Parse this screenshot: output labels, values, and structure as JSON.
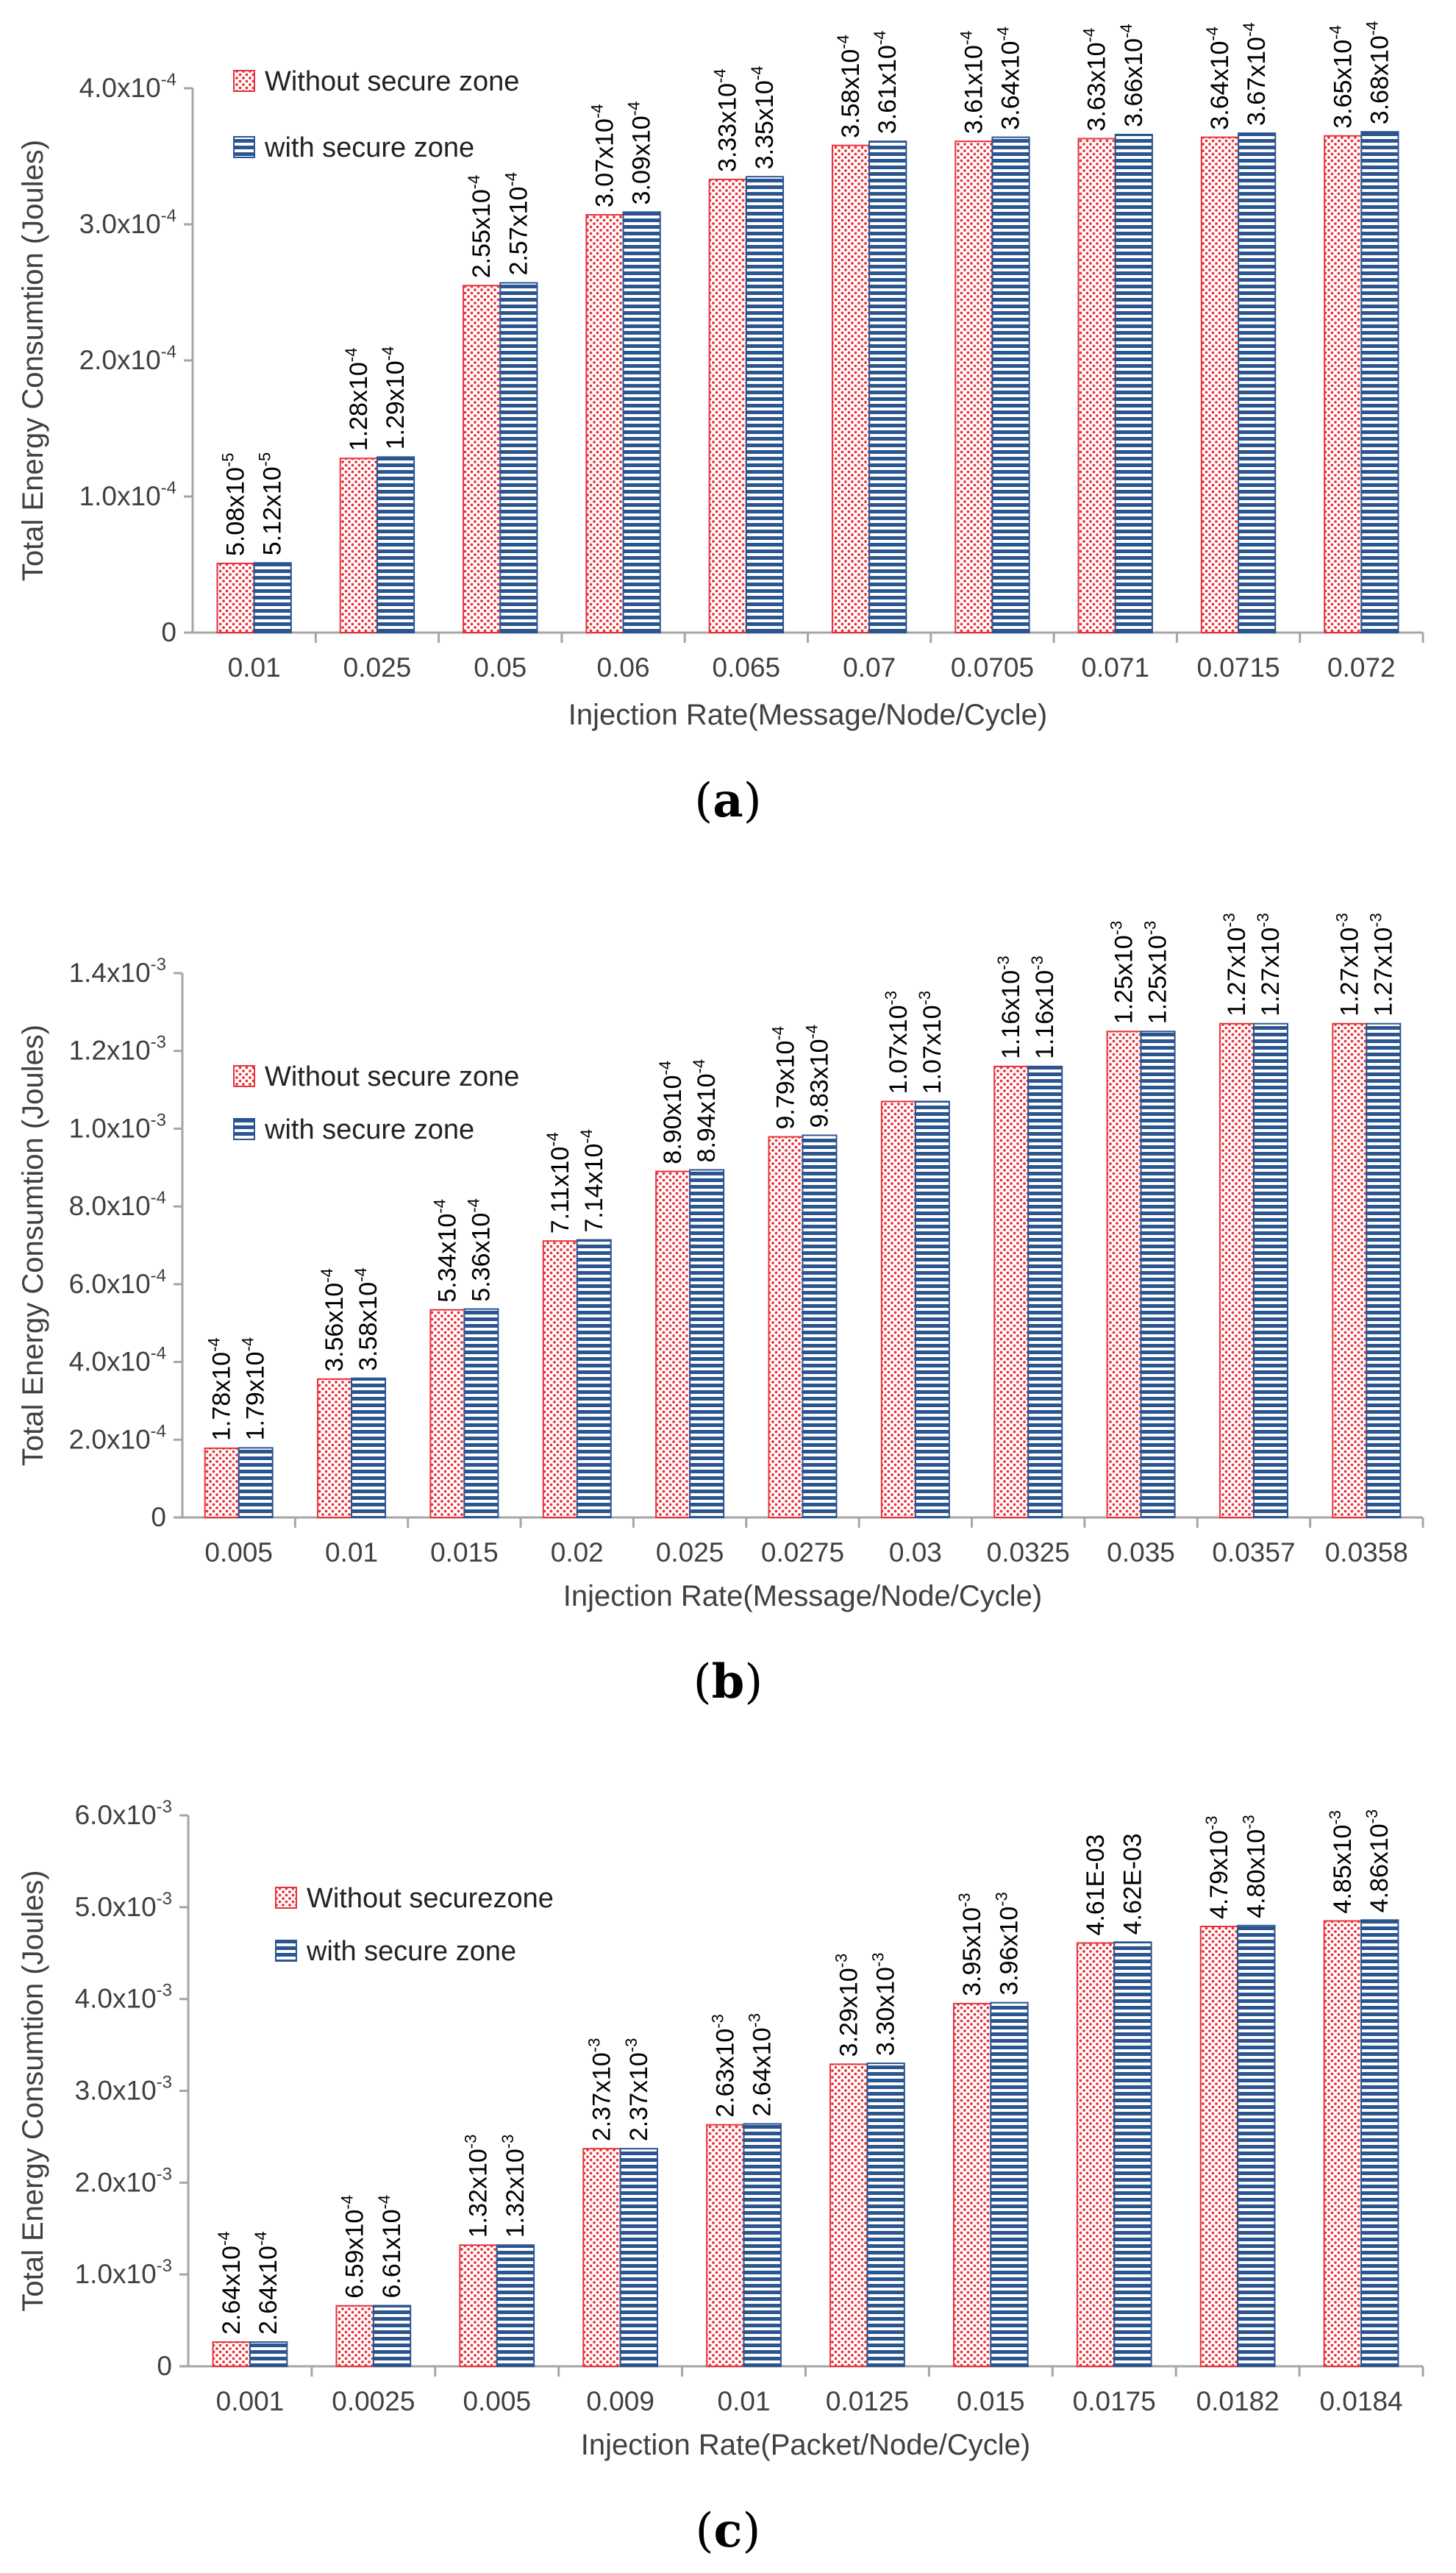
{
  "colors": {
    "series_without": "#e8333c",
    "series_with": "#2b5590",
    "axis": "#a6a6a6",
    "text": "#404040"
  },
  "chart_data": [
    {
      "type": "bar",
      "panel_label": "(a)",
      "xlabel": "Injection Rate(Message/Node/Cycle)",
      "ylabel": "Total Energy Consumtion (Joules)",
      "ylim": [
        0,
        0.0004
      ],
      "grid": false,
      "legend_position": "top-left",
      "yticks": [
        0,
        0.0001,
        0.0002,
        0.0003,
        0.0004
      ],
      "ytick_labels": [
        {
          "base": "0",
          "exp": ""
        },
        {
          "base": "1.0x10",
          "exp": "-4"
        },
        {
          "base": "2.0x10",
          "exp": "-4"
        },
        {
          "base": "3.0x10",
          "exp": "-4"
        },
        {
          "base": "4.0x10",
          "exp": "-4"
        }
      ],
      "categories": [
        "0.01",
        "0.025",
        "0.05",
        "0.06",
        "0.065",
        "0.07",
        "0.0705",
        "0.071",
        "0.0715",
        "0.072"
      ],
      "series": [
        {
          "name": "Without secure zone",
          "values": [
            5.08e-05,
            0.000128,
            0.000255,
            0.000307,
            0.000333,
            0.000358,
            0.000361,
            0.000363,
            0.000364,
            0.000365
          ],
          "labels": [
            {
              "base": "5.08x10",
              "exp": "-5"
            },
            {
              "base": "1.28x10",
              "exp": "-4"
            },
            {
              "base": "2.55x10",
              "exp": "-4"
            },
            {
              "base": "3.07x10",
              "exp": "-4"
            },
            {
              "base": "3.33x10",
              "exp": "-4"
            },
            {
              "base": "3.58x10",
              "exp": "-4"
            },
            {
              "base": "3.61x10",
              "exp": "-4"
            },
            {
              "base": "3.63x10",
              "exp": "-4"
            },
            {
              "base": "3.64x10",
              "exp": "-4"
            },
            {
              "base": "3.65x10",
              "exp": "-4"
            }
          ]
        },
        {
          "name": "with secure zone",
          "values": [
            5.12e-05,
            0.000129,
            0.000257,
            0.000309,
            0.000335,
            0.000361,
            0.000364,
            0.000366,
            0.000367,
            0.000368
          ],
          "labels": [
            {
              "base": "5.12x10",
              "exp": "-5"
            },
            {
              "base": "1.29x10",
              "exp": "-4"
            },
            {
              "base": "2.57x10",
              "exp": "-4"
            },
            {
              "base": "3.09x10",
              "exp": "-4"
            },
            {
              "base": "3.35x10",
              "exp": "-4"
            },
            {
              "base": "3.61x10",
              "exp": "-4"
            },
            {
              "base": "3.64x10",
              "exp": "-4"
            },
            {
              "base": "3.66x10",
              "exp": "-4"
            },
            {
              "base": "3.67x10",
              "exp": "-4"
            },
            {
              "base": "3.68x10",
              "exp": "-4"
            }
          ]
        }
      ]
    },
    {
      "type": "bar",
      "panel_label": "(b)",
      "xlabel": "Injection Rate(Message/Node/Cycle)",
      "ylabel": "Total Energy Consumtion (Joules)",
      "ylim": [
        0,
        0.0014
      ],
      "grid": false,
      "legend_position": "top-left",
      "yticks": [
        0,
        0.0002,
        0.0004,
        0.0006,
        0.0008,
        0.001,
        0.0012,
        0.0014
      ],
      "ytick_labels": [
        {
          "base": "0",
          "exp": ""
        },
        {
          "base": "2.0x10",
          "exp": "-4"
        },
        {
          "base": "4.0x10",
          "exp": "-4"
        },
        {
          "base": "6.0x10",
          "exp": "-4"
        },
        {
          "base": "8.0x10",
          "exp": "-4"
        },
        {
          "base": "1.0x10",
          "exp": "-3"
        },
        {
          "base": "1.2x10",
          "exp": "-3"
        },
        {
          "base": "1.4x10",
          "exp": "-3"
        }
      ],
      "categories": [
        "0.005",
        "0.01",
        "0.015",
        "0.02",
        "0.025",
        "0.0275",
        "0.03",
        "0.0325",
        "0.035",
        "0.0357",
        "0.0358"
      ],
      "series": [
        {
          "name": "Without secure zone",
          "values": [
            0.000178,
            0.000356,
            0.000534,
            0.000711,
            0.00089,
            0.000979,
            0.00107,
            0.00116,
            0.00125,
            0.00127,
            0.00127
          ],
          "labels": [
            {
              "base": "1.78x10",
              "exp": "-4"
            },
            {
              "base": "3.56x10",
              "exp": "-4"
            },
            {
              "base": "5.34x10",
              "exp": "-4"
            },
            {
              "base": "7.11x10",
              "exp": "-4"
            },
            {
              "base": "8.90x10",
              "exp": "-4"
            },
            {
              "base": "9.79x10",
              "exp": "-4"
            },
            {
              "base": "1.07x10",
              "exp": "-3"
            },
            {
              "base": "1.16x10",
              "exp": "-3"
            },
            {
              "base": "1.25x10",
              "exp": "-3"
            },
            {
              "base": "1.27x10",
              "exp": "-3"
            },
            {
              "base": "1.27x10",
              "exp": "-3"
            }
          ]
        },
        {
          "name": "with secure zone",
          "values": [
            0.000179,
            0.000358,
            0.000536,
            0.000714,
            0.000894,
            0.000983,
            0.00107,
            0.00116,
            0.00125,
            0.00127,
            0.00127
          ],
          "labels": [
            {
              "base": "1.79x10",
              "exp": "-4"
            },
            {
              "base": "3.58x10",
              "exp": "-4"
            },
            {
              "base": "5.36x10",
              "exp": "-4"
            },
            {
              "base": "7.14x10",
              "exp": "-4"
            },
            {
              "base": "8.94x10",
              "exp": "-4"
            },
            {
              "base": "9.83x10",
              "exp": "-4"
            },
            {
              "base": "1.07x10",
              "exp": "-3"
            },
            {
              "base": "1.16x10",
              "exp": "-3"
            },
            {
              "base": "1.25x10",
              "exp": "-3"
            },
            {
              "base": "1.27x10",
              "exp": "-3"
            },
            {
              "base": "1.27x10",
              "exp": "-3"
            }
          ]
        }
      ]
    },
    {
      "type": "bar",
      "panel_label": "(c)",
      "xlabel": "Injection Rate(Packet/Node/Cycle)",
      "ylabel": "Total Energy Consumtion (Joules)",
      "ylim": [
        0,
        0.006
      ],
      "grid": false,
      "legend_position": "top-left",
      "yticks": [
        0,
        0.001,
        0.002,
        0.003,
        0.004,
        0.005,
        0.006
      ],
      "ytick_labels": [
        {
          "base": "0",
          "exp": ""
        },
        {
          "base": "1.0x10",
          "exp": "-3"
        },
        {
          "base": "2.0x10",
          "exp": "-3"
        },
        {
          "base": "3.0x10",
          "exp": "-3"
        },
        {
          "base": "4.0x10",
          "exp": "-3"
        },
        {
          "base": "5.0x10",
          "exp": "-3"
        },
        {
          "base": "6.0x10",
          "exp": "-3"
        }
      ],
      "categories": [
        "0.001",
        "0.0025",
        "0.005",
        "0.009",
        "0.01",
        "0.0125",
        "0.015",
        "0.0175",
        "0.0182",
        "0.0184"
      ],
      "series": [
        {
          "name": "Without securezone",
          "values": [
            0.000264,
            0.000659,
            0.00132,
            0.00237,
            0.00263,
            0.00329,
            0.00395,
            0.00461,
            0.00479,
            0.00485
          ],
          "labels": [
            {
              "base": "2.64x10",
              "exp": "-4"
            },
            {
              "base": "6.59x10",
              "exp": "-4"
            },
            {
              "base": "1.32x10",
              "exp": "-3"
            },
            {
              "base": "2.37x10",
              "exp": "-3"
            },
            {
              "base": "2.63x10",
              "exp": "-3"
            },
            {
              "base": "3.29x10",
              "exp": "-3"
            },
            {
              "base": "3.95x10",
              "exp": "-3"
            },
            {
              "base": "4.61E-03",
              "exp": ""
            },
            {
              "base": "4.79x10",
              "exp": "-3"
            },
            {
              "base": "4.85x10",
              "exp": "-3"
            }
          ]
        },
        {
          "name": "with secure zone",
          "values": [
            0.000264,
            0.000661,
            0.00132,
            0.00237,
            0.00264,
            0.0033,
            0.00396,
            0.00462,
            0.0048,
            0.00486
          ],
          "labels": [
            {
              "base": "2.64x10",
              "exp": "-4"
            },
            {
              "base": "6.61x10",
              "exp": "-4"
            },
            {
              "base": "1.32x10",
              "exp": "-3"
            },
            {
              "base": "2.37x10",
              "exp": "-3"
            },
            {
              "base": "2.64x10",
              "exp": "-3"
            },
            {
              "base": "3.30x10",
              "exp": "-3"
            },
            {
              "base": "3.96x10",
              "exp": "-3"
            },
            {
              "base": "4.62E-03",
              "exp": ""
            },
            {
              "base": "4.80x10",
              "exp": "-3"
            },
            {
              "base": "4.86x10",
              "exp": "-3"
            }
          ]
        }
      ]
    }
  ]
}
